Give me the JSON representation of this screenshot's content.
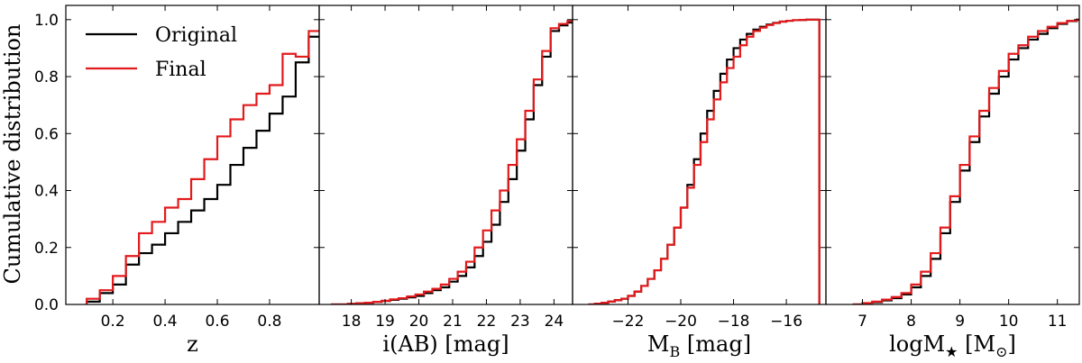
{
  "chart_data": {
    "type": "line",
    "ylabel": "Cumulative distribution",
    "ylim": [
      0,
      1.05
    ],
    "yticks": [
      "0.0",
      "0.2",
      "0.4",
      "0.6",
      "0.8",
      "1.0"
    ],
    "legend": {
      "placement": "top-left of first panel",
      "entries": [
        {
          "label": "Original",
          "color": "#000000"
        },
        {
          "label": "Final",
          "color": "#e31a1c"
        }
      ]
    },
    "panels": [
      {
        "id": "z",
        "xlabel": "z",
        "xlim": [
          0.02,
          0.99
        ],
        "xticks": [
          "0.2",
          "0.4",
          "0.6",
          "0.8"
        ],
        "xtick_values": [
          0.2,
          0.4,
          0.6,
          0.8
        ],
        "series": [
          {
            "name": "Original",
            "color": "#000000",
            "edges": [
              0.1,
              0.15,
              0.2,
              0.25,
              0.3,
              0.35,
              0.4,
              0.45,
              0.5,
              0.55,
              0.6,
              0.65,
              0.7,
              0.75,
              0.8,
              0.85,
              0.9,
              0.95
            ],
            "cdf": [
              0.01,
              0.04,
              0.07,
              0.14,
              0.18,
              0.21,
              0.25,
              0.29,
              0.33,
              0.37,
              0.42,
              0.49,
              0.55,
              0.61,
              0.67,
              0.73,
              0.85,
              0.94
            ]
          },
          {
            "name": "Final",
            "color": "#e31a1c",
            "edges": [
              0.1,
              0.15,
              0.2,
              0.25,
              0.3,
              0.35,
              0.4,
              0.45,
              0.5,
              0.55,
              0.6,
              0.65,
              0.7,
              0.75,
              0.8,
              0.85,
              0.9,
              0.95
            ],
            "cdf": [
              0.02,
              0.05,
              0.1,
              0.17,
              0.25,
              0.29,
              0.34,
              0.37,
              0.44,
              0.51,
              0.59,
              0.65,
              0.7,
              0.74,
              0.77,
              0.88,
              0.87,
              0.96
            ]
          }
        ]
      },
      {
        "id": "iAB",
        "xlabel": "i(AB) [mag]",
        "xlim": [
          17.05,
          24.55
        ],
        "xticks": [
          "18",
          "19",
          "20",
          "21",
          "22",
          "23",
          "24"
        ],
        "xtick_values": [
          18,
          19,
          20,
          21,
          22,
          23,
          24
        ],
        "series": [
          {
            "name": "Original",
            "color": "#000000",
            "edges": [
              17.4,
              17.65,
              17.9,
              18.15,
              18.4,
              18.65,
              18.9,
              19.15,
              19.4,
              19.65,
              19.9,
              20.15,
              20.4,
              20.65,
              20.9,
              21.15,
              21.4,
              21.65,
              21.9,
              22.15,
              22.4,
              22.65,
              22.9,
              23.15,
              23.4,
              23.65,
              23.9,
              24.15,
              24.4
            ],
            "cdf": [
              0.0,
              0.0,
              0.002,
              0.004,
              0.006,
              0.009,
              0.012,
              0.016,
              0.02,
              0.025,
              0.03,
              0.04,
              0.05,
              0.06,
              0.08,
              0.1,
              0.13,
              0.17,
              0.22,
              0.28,
              0.36,
              0.44,
              0.54,
              0.65,
              0.77,
              0.87,
              0.96,
              0.98,
              0.99
            ]
          },
          {
            "name": "Final",
            "color": "#e31a1c",
            "edges": [
              17.4,
              17.65,
              17.9,
              18.15,
              18.4,
              18.65,
              18.9,
              19.15,
              19.4,
              19.65,
              19.9,
              20.15,
              20.4,
              20.65,
              20.9,
              21.15,
              21.4,
              21.65,
              21.9,
              22.15,
              22.4,
              22.65,
              22.9,
              23.15,
              23.4,
              23.65,
              23.9,
              24.15,
              24.4
            ],
            "cdf": [
              0.0,
              0.0,
              0.002,
              0.004,
              0.006,
              0.009,
              0.013,
              0.018,
              0.022,
              0.028,
              0.035,
              0.045,
              0.055,
              0.07,
              0.09,
              0.115,
              0.15,
              0.2,
              0.26,
              0.33,
              0.4,
              0.49,
              0.58,
              0.68,
              0.79,
              0.89,
              0.97,
              0.985,
              0.995
            ]
          }
        ]
      },
      {
        "id": "MB",
        "xlabel": "M_B [mag]",
        "xlabel_main": "M",
        "xlabel_sub": "B",
        "xlabel_rest": " [mag]",
        "xlim": [
          -24.1,
          -14.5
        ],
        "xticks": [
          "−22",
          "−20",
          "−18",
          "−16"
        ],
        "xtick_values": [
          -22,
          -20,
          -18,
          -16
        ],
        "series": [
          {
            "name": "Original",
            "color": "#000000",
            "edges": [
              -23.5,
              -23.25,
              -23.0,
              -22.75,
              -22.5,
              -22.25,
              -22.0,
              -21.75,
              -21.5,
              -21.25,
              -21.0,
              -20.75,
              -20.5,
              -20.25,
              -20.0,
              -19.75,
              -19.5,
              -19.25,
              -19.0,
              -18.75,
              -18.5,
              -18.25,
              -18.0,
              -17.75,
              -17.5,
              -17.25,
              -17.0,
              -16.75,
              -16.5,
              -16.25,
              -16.0,
              -15.75,
              -15.5,
              -15.25,
              -15.0
            ],
            "cdf": [
              0.0,
              0.003,
              0.006,
              0.01,
              0.015,
              0.02,
              0.03,
              0.045,
              0.065,
              0.09,
              0.12,
              0.16,
              0.21,
              0.27,
              0.34,
              0.42,
              0.51,
              0.6,
              0.68,
              0.75,
              0.81,
              0.86,
              0.9,
              0.93,
              0.95,
              0.965,
              0.975,
              0.983,
              0.989,
              0.993,
              0.996,
              0.998,
              0.999,
              1.0,
              1.0
            ]
          },
          {
            "name": "Final",
            "color": "#e31a1c",
            "edges": [
              -23.5,
              -23.25,
              -23.0,
              -22.75,
              -22.5,
              -22.25,
              -22.0,
              -21.75,
              -21.5,
              -21.25,
              -21.0,
              -20.75,
              -20.5,
              -20.25,
              -20.0,
              -19.75,
              -19.5,
              -19.25,
              -19.0,
              -18.75,
              -18.5,
              -18.25,
              -18.0,
              -17.75,
              -17.5,
              -17.25,
              -17.0,
              -16.75,
              -16.5,
              -16.25,
              -16.0,
              -15.75,
              -15.5,
              -15.25,
              -15.0
            ],
            "cdf": [
              0.0,
              0.003,
              0.006,
              0.01,
              0.015,
              0.02,
              0.03,
              0.045,
              0.065,
              0.09,
              0.12,
              0.16,
              0.21,
              0.27,
              0.34,
              0.41,
              0.49,
              0.57,
              0.65,
              0.72,
              0.78,
              0.83,
              0.87,
              0.91,
              0.94,
              0.96,
              0.972,
              0.981,
              0.988,
              0.993,
              0.996,
              0.998,
              0.999,
              1.0,
              1.0
            ]
          }
        ]
      },
      {
        "id": "logM",
        "xlabel": "logM_★ [M_⊙]",
        "xlabel_main": "logM",
        "xlabel_sub": "★",
        "xlabel_rest": " [M",
        "xlabel_sub2": "⊙",
        "xlabel_end": "]",
        "xlim": [
          6.25,
          11.45
        ],
        "xticks": [
          "7",
          "8",
          "9",
          "10",
          "11"
        ],
        "xtick_values": [
          7,
          8,
          9,
          10,
          11
        ],
        "series": [
          {
            "name": "Original",
            "color": "#000000",
            "edges": [
              6.8,
              7.0,
              7.2,
              7.4,
              7.6,
              7.8,
              8.0,
              8.2,
              8.4,
              8.6,
              8.8,
              9.0,
              9.2,
              9.4,
              9.6,
              9.8,
              10.0,
              10.2,
              10.4,
              10.6,
              10.8,
              11.0,
              11.2,
              11.4
            ],
            "cdf": [
              0.0,
              0.004,
              0.008,
              0.014,
              0.022,
              0.035,
              0.06,
              0.1,
              0.16,
              0.25,
              0.36,
              0.47,
              0.57,
              0.66,
              0.74,
              0.8,
              0.86,
              0.9,
              0.93,
              0.95,
              0.97,
              0.985,
              0.995,
              1.0
            ]
          },
          {
            "name": "Final",
            "color": "#e31a1c",
            "edges": [
              6.8,
              7.0,
              7.2,
              7.4,
              7.6,
              7.8,
              8.0,
              8.2,
              8.4,
              8.6,
              8.8,
              9.0,
              9.2,
              9.4,
              9.6,
              9.8,
              10.0,
              10.2,
              10.4,
              10.6,
              10.8,
              11.0,
              11.2,
              11.4
            ],
            "cdf": [
              0.0,
              0.005,
              0.01,
              0.017,
              0.026,
              0.04,
              0.07,
              0.115,
              0.18,
              0.27,
              0.38,
              0.49,
              0.59,
              0.68,
              0.76,
              0.82,
              0.88,
              0.91,
              0.94,
              0.96,
              0.975,
              0.988,
              0.996,
              1.0
            ]
          }
        ]
      }
    ]
  }
}
